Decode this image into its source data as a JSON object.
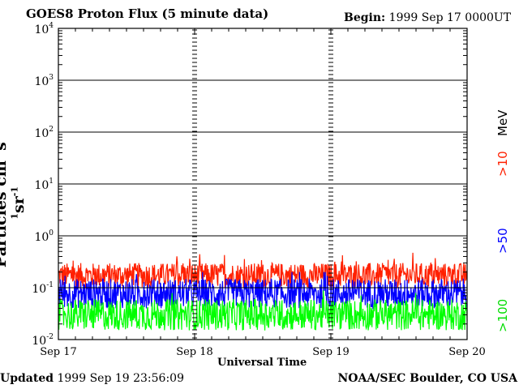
{
  "header": {
    "title": "GOES8 Proton Flux (5 minute data)",
    "begin_label": "Begin:",
    "begin_value": "1999 Sep 17 0000UT"
  },
  "footer": {
    "updated_label": "Updated",
    "updated_value": "1999 Sep 19 23:56:09",
    "credit": "NOAA/SEC Boulder, CO USA"
  },
  "chart_data": {
    "type": "line",
    "title": "GOES8 Proton Flux (5 minute data)",
    "xlabel": "Universal Time",
    "ylabel_base": "Particles cm",
    "ylabel_exp1": "-2",
    "ylabel_mid1": "s",
    "ylabel_exp2": "-1",
    "ylabel_mid2": "sr",
    "ylabel_exp3": "-1",
    "y_scale": "log",
    "ylim": [
      0.01,
      10000
    ],
    "xlim": [
      "1999-09-17",
      "1999-09-20"
    ],
    "x_ticks": [
      "Sep 17",
      "Sep 18",
      "Sep 19",
      "Sep 20"
    ],
    "y_ticks": [
      {
        "base": "10",
        "exp": "-2"
      },
      {
        "base": "10",
        "exp": "-1"
      },
      {
        "base": "10",
        "exp": "0"
      },
      {
        "base": "10",
        "exp": "1"
      },
      {
        "base": "10",
        "exp": "2"
      },
      {
        "base": "10",
        "exp": "3"
      },
      {
        "base": "10",
        "exp": "4"
      }
    ],
    "grid": true,
    "legend_placement": "right",
    "series": [
      {
        "name": ">10 MeV",
        "color": "#ff2000",
        "typical_range": [
          0.1,
          0.3
        ],
        "peak": 0.5
      },
      {
        "name": ">50",
        "color": "#0000ff",
        "typical_range": [
          0.04,
          0.15
        ],
        "peak": 0.2
      },
      {
        "name": ">100",
        "color": "#00ff00",
        "typical_range": [
          0.015,
          0.06
        ],
        "peak": 0.09
      }
    ],
    "legend": {
      "l10": ">10",
      "mev": "MeV",
      "l50": ">50",
      "l100": ">100"
    }
  }
}
